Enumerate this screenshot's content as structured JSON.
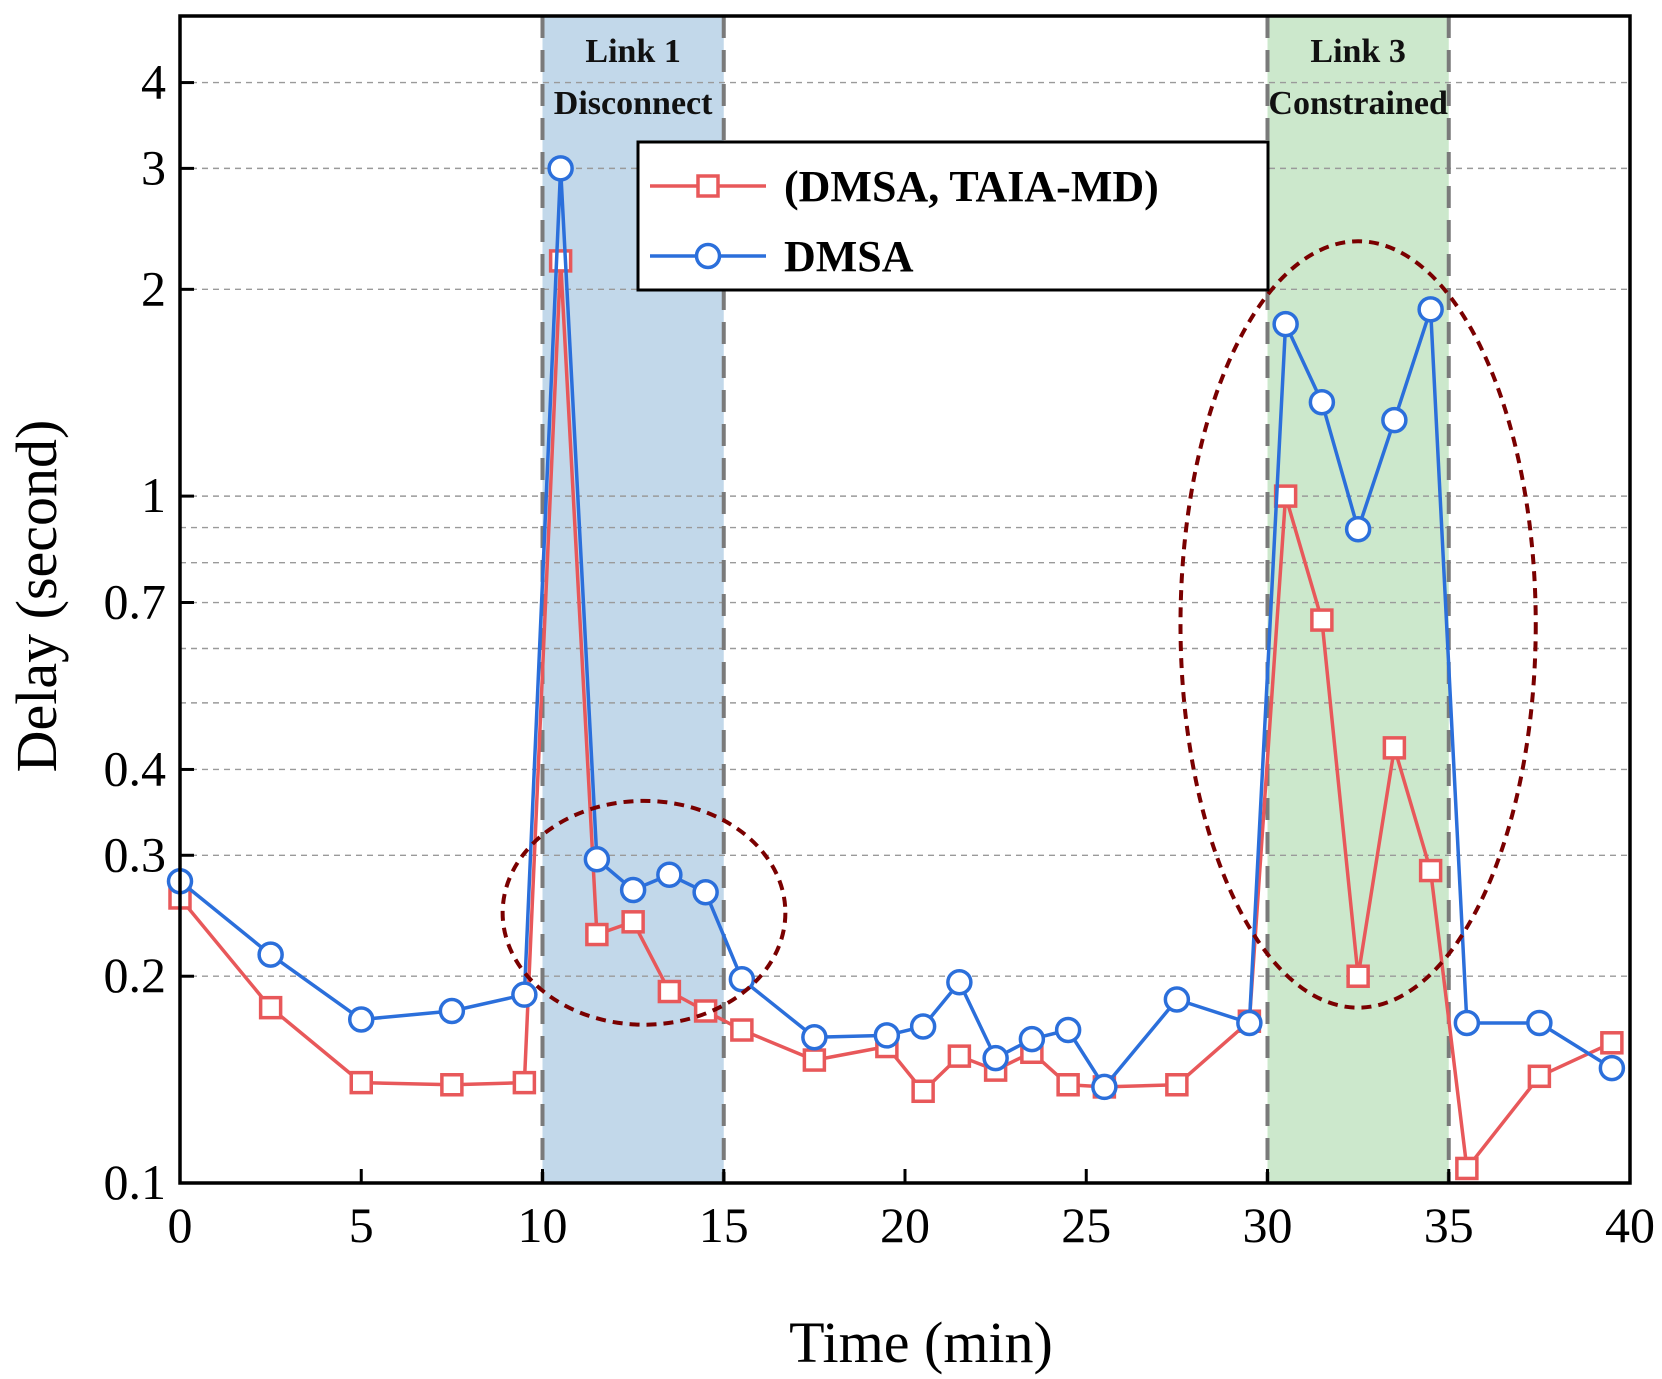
{
  "chart_data": {
    "type": "line",
    "xlabel": "Time (min)",
    "ylabel": "Delay (second)",
    "xlim": [
      0,
      40
    ],
    "ylim": [
      0.1,
      5
    ],
    "yscale": "log",
    "grid": "horizontal dashed",
    "legend_placement": "top-center",
    "x_ticks": [
      0,
      5,
      10,
      15,
      20,
      25,
      30,
      35,
      40
    ],
    "x_tick_labels": [
      "0",
      "5",
      "10",
      "15",
      "20",
      "25",
      "30",
      "35",
      "40"
    ],
    "y_ticks": [
      0.1,
      0.2,
      0.3,
      0.4,
      0.7,
      1,
      2,
      3,
      4
    ],
    "y_tick_labels": [
      "0.1",
      "0.2",
      "0.3",
      "0.4",
      "0.7",
      "1",
      "2",
      "3",
      "4"
    ],
    "y_grid_values": [
      0.2,
      0.3,
      0.4,
      0.5,
      0.6,
      0.7,
      0.8,
      0.9,
      1,
      2,
      3,
      4
    ],
    "regions": [
      {
        "x_start": 10,
        "x_end": 15,
        "label_line1": "Link 1",
        "label_line2": "Disconnect",
        "color": "#c2d8ea"
      },
      {
        "x_start": 30,
        "x_end": 35,
        "label_line1": "Link 3",
        "label_line2": "Constrained",
        "color": "#cce8cc"
      }
    ],
    "annotations": [
      {
        "shape": "dashed-ellipse",
        "x_center": 12.8,
        "y_center": 0.24,
        "x_radius": 3.9,
        "y_extent": [
          0.17,
          0.36
        ],
        "color": "#7a0000"
      },
      {
        "shape": "dashed-ellipse",
        "x_center": 32.5,
        "y_center": 0.68,
        "x_radius": 4.9,
        "y_extent": [
          0.18,
          2.35
        ],
        "color": "#7a0000"
      }
    ],
    "series": [
      {
        "name": "(DMSA, TAIA-MD)",
        "color": "#e8585a",
        "marker": "square",
        "points": [
          [
            0,
            0.26
          ],
          [
            2.5,
            0.18
          ],
          [
            5,
            0.14
          ],
          [
            7.5,
            0.139
          ],
          [
            9.5,
            0.14
          ],
          [
            10.5,
            2.2
          ],
          [
            11.5,
            0.23
          ],
          [
            12.5,
            0.24
          ],
          [
            13.5,
            0.19
          ],
          [
            14.5,
            0.178
          ],
          [
            15.5,
            0.167
          ],
          [
            17.5,
            0.151
          ],
          [
            19.5,
            0.158
          ],
          [
            20.5,
            0.136
          ],
          [
            21.5,
            0.153
          ],
          [
            22.5,
            0.146
          ],
          [
            23.5,
            0.155
          ],
          [
            24.5,
            0.139
          ],
          [
            25.5,
            0.138
          ],
          [
            27.5,
            0.139
          ],
          [
            29.5,
            0.172
          ],
          [
            30.5,
            1.0
          ],
          [
            31.5,
            0.66
          ],
          [
            32.5,
            0.2
          ],
          [
            33.5,
            0.43
          ],
          [
            34.5,
            0.285
          ],
          [
            35.5,
            0.105
          ],
          [
            37.5,
            0.143
          ],
          [
            39.5,
            0.16
          ]
        ]
      },
      {
        "name": "DMSA",
        "color": "#2b6fdb",
        "marker": "circle",
        "points": [
          [
            0,
            0.275
          ],
          [
            2.5,
            0.215
          ],
          [
            5,
            0.173
          ],
          [
            7.5,
            0.178
          ],
          [
            9.5,
            0.188
          ],
          [
            10.5,
            3.0
          ],
          [
            11.5,
            0.296
          ],
          [
            12.5,
            0.267
          ],
          [
            13.5,
            0.281
          ],
          [
            14.5,
            0.265
          ],
          [
            15.5,
            0.198
          ],
          [
            17.5,
            0.163
          ],
          [
            19.5,
            0.164
          ],
          [
            20.5,
            0.169
          ],
          [
            21.5,
            0.196
          ],
          [
            22.5,
            0.152
          ],
          [
            23.5,
            0.162
          ],
          [
            24.5,
            0.167
          ],
          [
            25.5,
            0.138
          ],
          [
            27.5,
            0.185
          ],
          [
            29.5,
            0.171
          ],
          [
            30.5,
            1.78
          ],
          [
            31.5,
            1.37
          ],
          [
            32.5,
            0.895
          ],
          [
            33.5,
            1.29
          ],
          [
            34.5,
            1.87
          ],
          [
            35.5,
            0.171
          ],
          [
            37.5,
            0.171
          ],
          [
            39.5,
            0.147
          ]
        ]
      }
    ]
  }
}
